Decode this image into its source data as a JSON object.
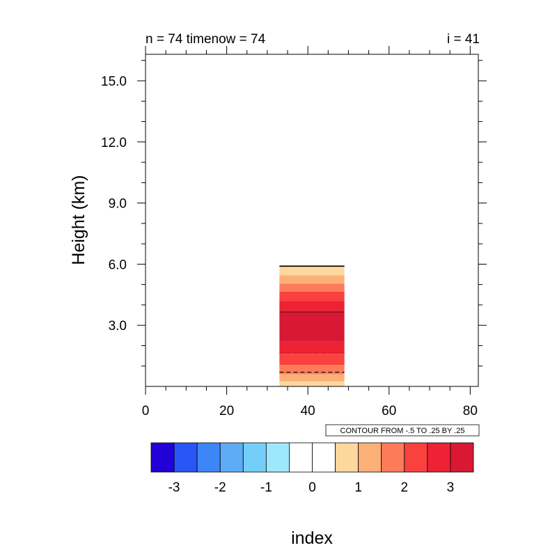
{
  "chart_data": {
    "type": "heatmap",
    "title_left": "n = 74 timenow = 74",
    "title_right": "i = 41",
    "xlabel": "index",
    "ylabel": "Height (km)",
    "xlim": [
      0,
      82
    ],
    "ylim": [
      0,
      16.3
    ],
    "xticks": [
      0,
      20,
      40,
      60,
      80
    ],
    "xtick_labels": [
      "0",
      "20",
      "40",
      "60",
      "80"
    ],
    "yticks": [
      3.0,
      6.0,
      9.0,
      12.0,
      15.0
    ],
    "ytick_labels": [
      "3.0",
      "6.0",
      "9.0",
      "12.0",
      "15.0"
    ],
    "contour_info": "CONTOUR FROM -.5 TO .25 BY .25",
    "field_region": {
      "x_start": 33,
      "x_end": 49
    },
    "bands": [
      {
        "y0": 0.0,
        "y1": 0.25,
        "color": "#FDD79E"
      },
      {
        "y0": 0.25,
        "y1": 0.6,
        "color": "#FDB076"
      },
      {
        "y0": 0.6,
        "y1": 1.05,
        "color": "#FD7B59"
      },
      {
        "y0": 1.05,
        "y1": 1.6,
        "color": "#F9423E"
      },
      {
        "y0": 1.6,
        "y1": 2.2,
        "color": "#EE2235"
      },
      {
        "y0": 2.2,
        "y1": 3.65,
        "color": "#D91833"
      },
      {
        "y0": 3.65,
        "y1": 4.2,
        "color": "#EE2235"
      },
      {
        "y0": 4.2,
        "y1": 4.65,
        "color": "#F9423E"
      },
      {
        "y0": 4.65,
        "y1": 5.05,
        "color": "#FD7B59"
      },
      {
        "y0": 5.05,
        "y1": 5.45,
        "color": "#FDB076"
      },
      {
        "y0": 5.45,
        "y1": 5.95,
        "color": "#FDD79E"
      }
    ],
    "contour_lines": [
      {
        "y": 0.7,
        "style": "dashed",
        "color": "#000000"
      },
      {
        "y": 1.65,
        "style": "dashed",
        "color": "#D91833"
      },
      {
        "y": 3.65,
        "style": "solid",
        "color": "#8B1020"
      },
      {
        "y": 5.9,
        "style": "solid",
        "color": "#000000"
      }
    ],
    "colorbar": {
      "colors": [
        "#2200D8",
        "#2A55F5",
        "#3D86F7",
        "#5EACF7",
        "#73CFFA",
        "#9EE8FD",
        "#FFFFFF",
        "#FFFFFF",
        "#FDD79E",
        "#FDB076",
        "#FD7B59",
        "#F9423E",
        "#EE2235",
        "#D91833"
      ],
      "labels": [
        {
          "boundary": 1,
          "text": "-3"
        },
        {
          "boundary": 3,
          "text": "-2"
        },
        {
          "boundary": 5,
          "text": "-1"
        },
        {
          "boundary": 7,
          "text": "0"
        },
        {
          "boundary": 9,
          "text": "1"
        },
        {
          "boundary": 11,
          "text": "2"
        },
        {
          "boundary": 13,
          "text": "3"
        }
      ]
    }
  }
}
